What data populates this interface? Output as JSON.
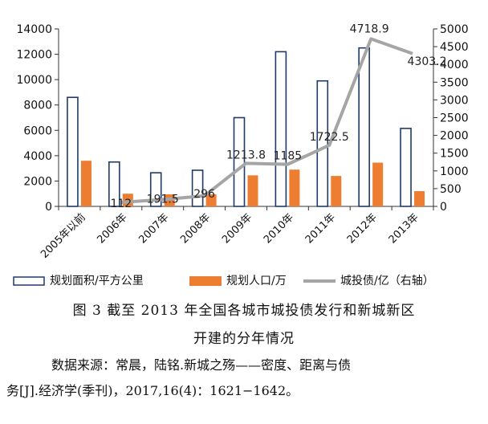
{
  "chart_data": {
    "type": "bar",
    "categories": [
      "2005年以前",
      "2006年",
      "2007年",
      "2008年",
      "2009年",
      "2010年",
      "2011年",
      "2012年",
      "2013年"
    ],
    "series": [
      {
        "name": "规划面积/平方公里",
        "type": "bar",
        "axis": "left",
        "style": "outline",
        "values": [
          8600,
          3500,
          2650,
          2850,
          7000,
          12200,
          9900,
          12500,
          6150
        ]
      },
      {
        "name": "规划人口/万",
        "type": "bar",
        "axis": "left",
        "style": "filled",
        "values": [
          3600,
          1000,
          950,
          950,
          2450,
          2900,
          2400,
          3450,
          1200
        ]
      },
      {
        "name": "城投债/亿（右轴）",
        "type": "line",
        "axis": "right",
        "values": [
          null,
          112,
          191.5,
          296,
          1213.8,
          1185,
          1722.5,
          4718.9,
          4303.2
        ],
        "labels": [
          "",
          "112",
          "191.5",
          "296",
          "1213.8",
          "1185",
          "1722.5",
          "4718.9",
          "4303.2"
        ]
      }
    ],
    "y_left": {
      "min": 0,
      "max": 14000,
      "ticks": [
        "0",
        "2000",
        "4000",
        "6000",
        "8000",
        "10000",
        "12000",
        "14000"
      ]
    },
    "y_right": {
      "min": 0,
      "max": 5000,
      "ticks": [
        "0",
        "500",
        "1000",
        "1500",
        "2000",
        "2500",
        "3000",
        "3500",
        "4000",
        "4500",
        "5000"
      ]
    },
    "grid": false,
    "legend_position": "bottom"
  },
  "colors": {
    "outline_bar": "#1f3a68",
    "filled_bar": "#ec7d31",
    "line": "#a5a5a5"
  },
  "caption": {
    "line1": "图 3  截至 2013 年全国各城市城投债发行和新城新区",
    "line2": "开建的分年情况"
  },
  "source": {
    "line1": "数据来源：常晨，陆铭.新城之殇——密度、距离与债",
    "line2": "务[J].经济学(季刊)，2017,16(4)：1621−1642。"
  }
}
